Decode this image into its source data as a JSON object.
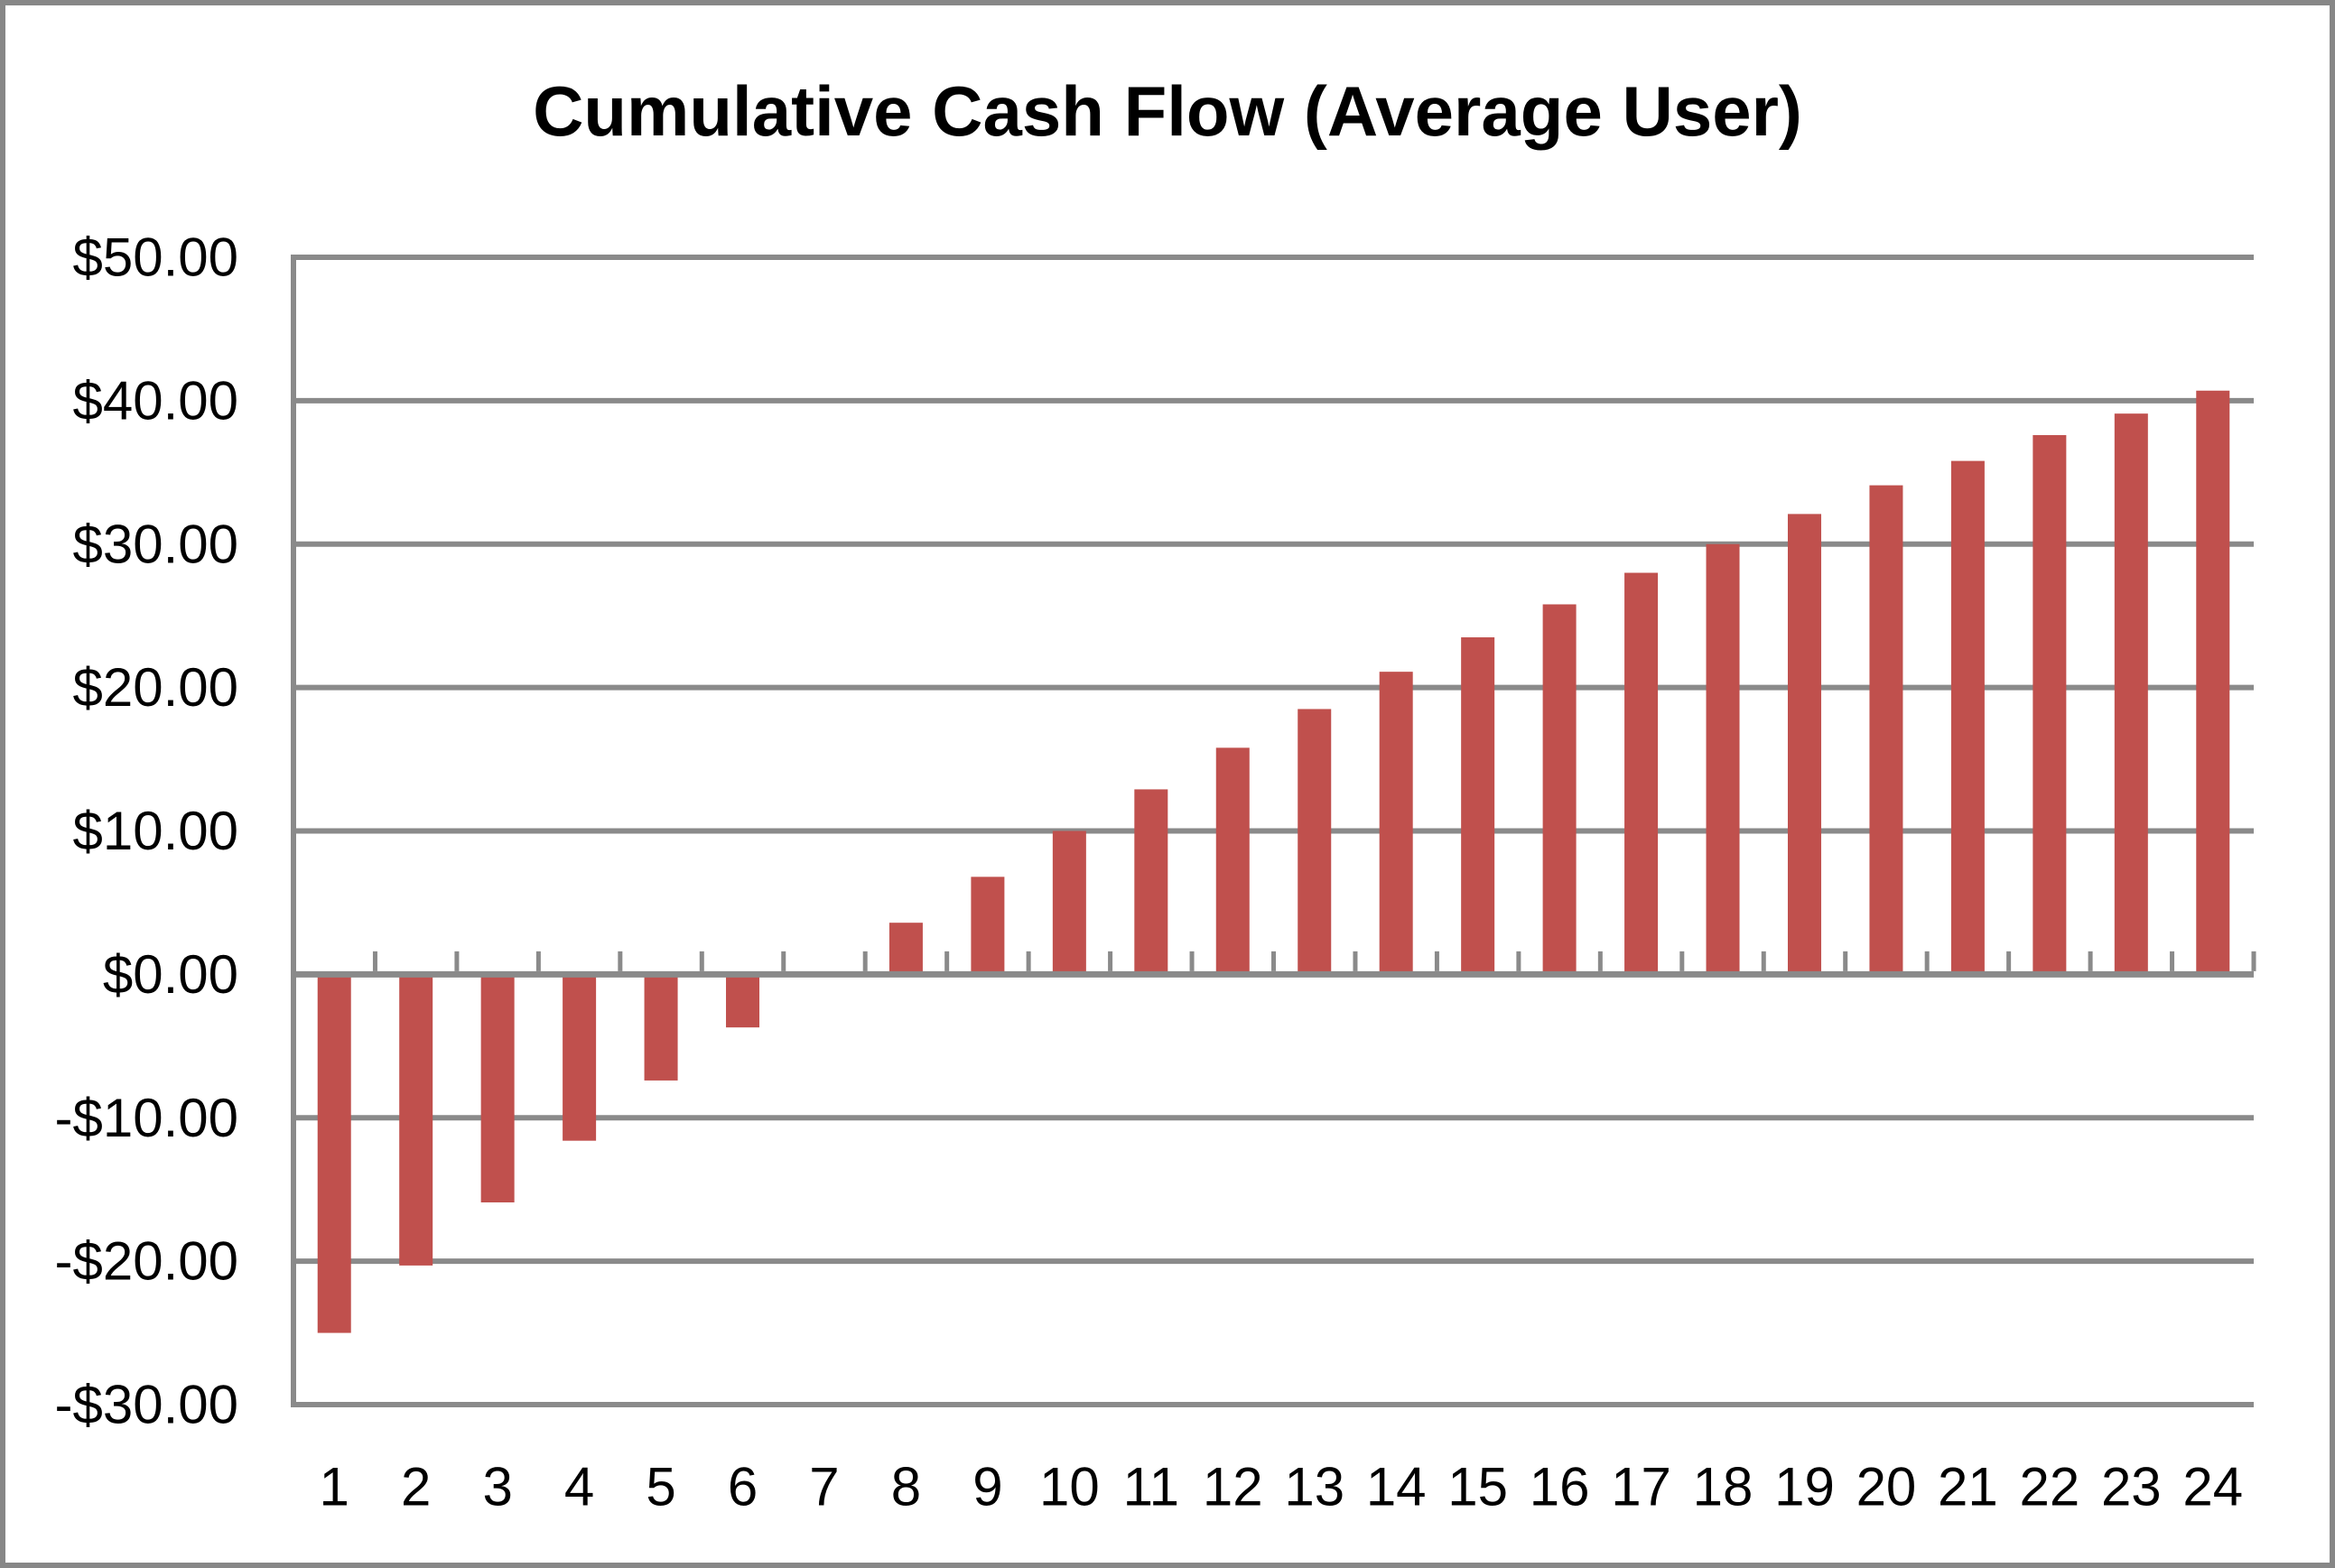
{
  "chart": {
    "title": "Cumulative Cash Flow (Average User)",
    "colors": {
      "bar": "#C0504D",
      "gridline": "#8A8A8A",
      "axis": "#8A8A8A",
      "text": "#000000",
      "background": "#FFFFFF",
      "figure_border": "#878787"
    }
  },
  "chart_data": {
    "type": "bar",
    "title": "Cumulative Cash Flow (Average User)",
    "categories": [
      "1",
      "2",
      "3",
      "4",
      "5",
      "6",
      "7",
      "8",
      "9",
      "10",
      "11",
      "12",
      "13",
      "14",
      "15",
      "16",
      "17",
      "18",
      "19",
      "20",
      "21",
      "22",
      "23",
      "24"
    ],
    "values": [
      -25.0,
      -20.3,
      -15.9,
      -11.6,
      -7.4,
      -3.7,
      0.0,
      3.6,
      6.8,
      10.0,
      12.9,
      15.8,
      18.5,
      21.1,
      23.5,
      25.8,
      28.0,
      30.0,
      32.1,
      34.1,
      35.8,
      37.6,
      39.1,
      40.7
    ],
    "xlabel": "",
    "ylabel": "",
    "ylim": [
      -30,
      50
    ],
    "ytick_step": 10,
    "ytick_labels": [
      "$50.00",
      "$40.00",
      "$30.00",
      "$20.00",
      "$10.00",
      "$0.00",
      "-$10.00",
      "-$20.00",
      "-$30.00"
    ],
    "grid": true,
    "legend": false
  }
}
